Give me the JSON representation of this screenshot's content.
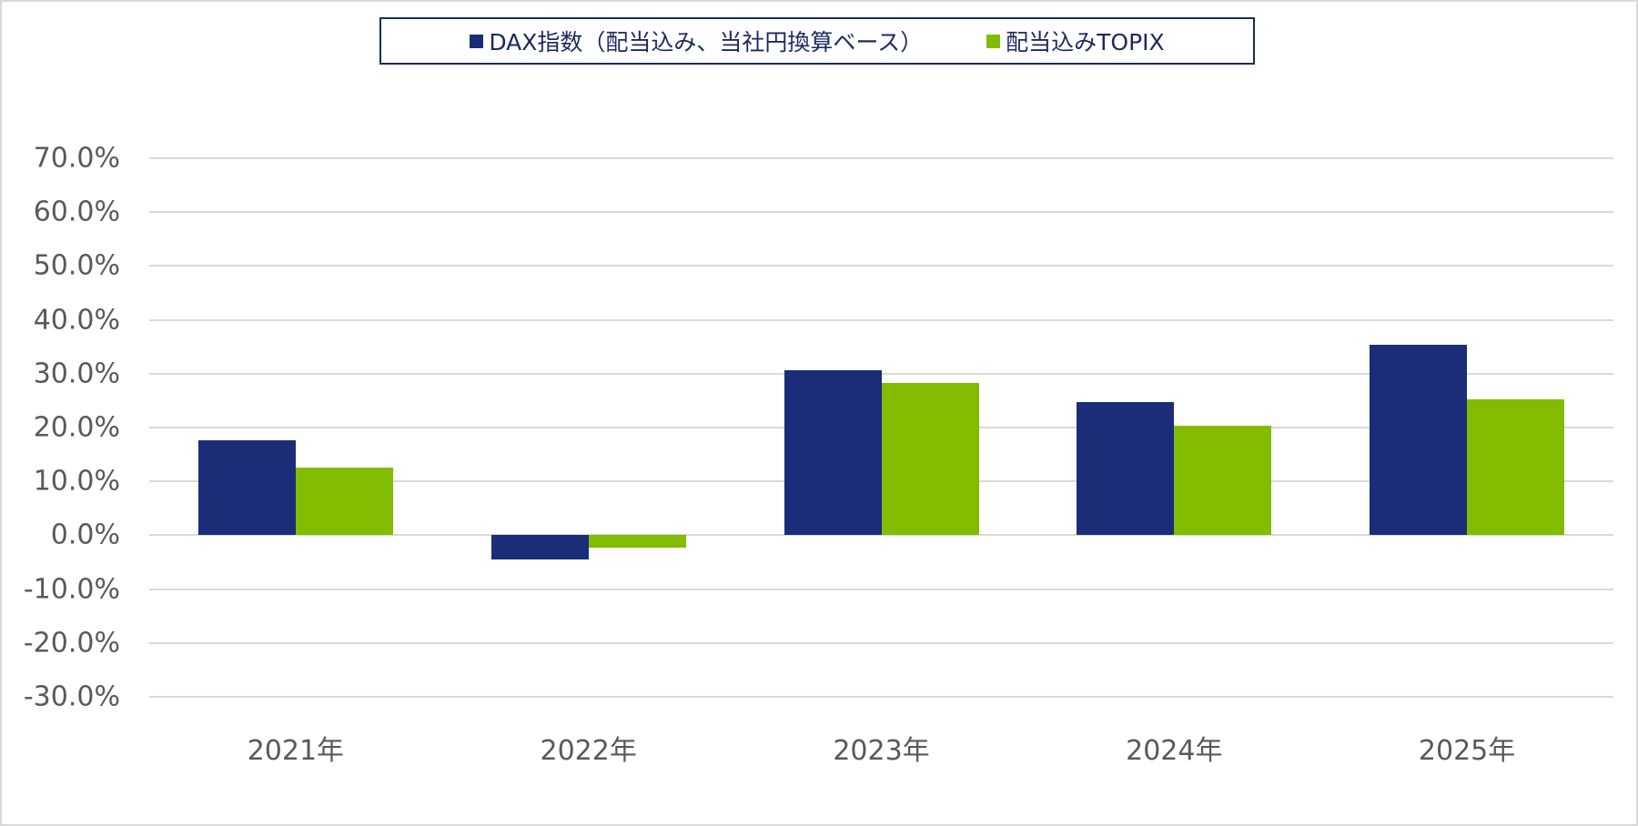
{
  "chart_data": {
    "type": "bar",
    "title": "",
    "xlabel": "",
    "ylabel": "",
    "categories": [
      "2021年",
      "2022年",
      "2023年",
      "2024年",
      "2025年"
    ],
    "series": [
      {
        "name": "DAX指数（配当込み、当社円換算ベース）",
        "color": "#1b2d78",
        "values": [
          17.6,
          -4.5,
          30.7,
          24.7,
          35.4
        ]
      },
      {
        "name": "配当込みTOPIX",
        "color": "#82bb00",
        "values": [
          12.5,
          -2.3,
          28.2,
          20.4,
          25.3
        ]
      }
    ],
    "ylim": [
      -30,
      70
    ],
    "yticks": [
      70,
      60,
      50,
      40,
      30,
      20,
      10,
      0,
      -10,
      -20,
      -30
    ],
    "ytick_labels": [
      "70.0%",
      "60.0%",
      "50.0%",
      "40.0%",
      "30.0%",
      "20.0%",
      "10.0%",
      "0.0%",
      "-10.0%",
      "-20.0%",
      "-30.0%"
    ],
    "grid": true,
    "legend_position": "top"
  },
  "legend": {
    "items": [
      {
        "label": "DAX指数（配当込み、当社円換算ベース）",
        "color": "#1b2d78"
      },
      {
        "label": "配当込みTOPIX",
        "color": "#82bb00"
      }
    ]
  }
}
